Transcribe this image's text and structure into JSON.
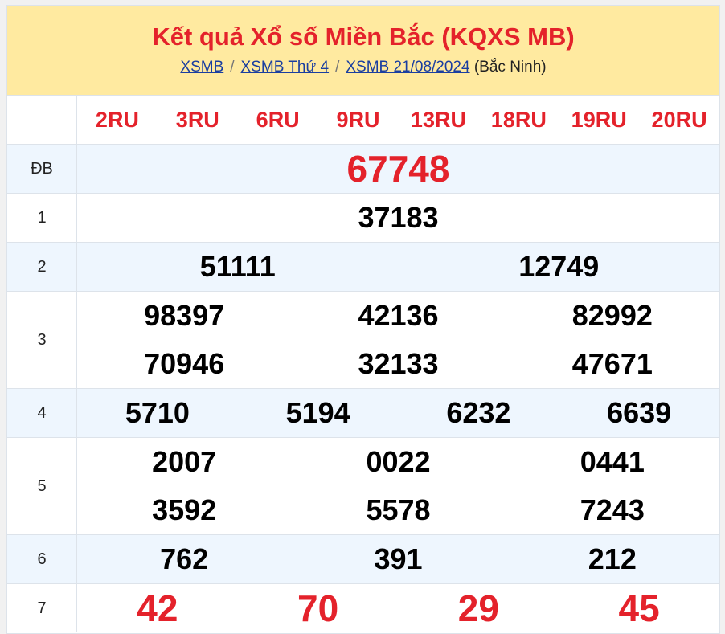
{
  "header": {
    "title": "Kết quả Xổ số Miền Bắc (KQXS MB)",
    "breadcrumb": [
      "XSMB",
      "XSMB Thứ 4",
      "XSMB 21/08/2024"
    ],
    "province": "(Bắc Ninh)"
  },
  "codes": [
    "2RU",
    "3RU",
    "6RU",
    "9RU",
    "13RU",
    "18RU",
    "19RU",
    "20RU"
  ],
  "prizes": [
    {
      "label": "ĐB",
      "cols": 1,
      "numbers": [
        "67748"
      ],
      "red": true,
      "alt": true,
      "size": 46
    },
    {
      "label": "1",
      "cols": 1,
      "numbers": [
        "37183"
      ]
    },
    {
      "label": "2",
      "cols": 2,
      "numbers": [
        "51111",
        "12749"
      ],
      "alt": true
    },
    {
      "label": "3",
      "cols": 3,
      "numbers": [
        "98397",
        "42136",
        "82992",
        "70946",
        "32133",
        "47671"
      ]
    },
    {
      "label": "4",
      "cols": 4,
      "numbers": [
        "5710",
        "5194",
        "6232",
        "6639"
      ],
      "alt": true
    },
    {
      "label": "5",
      "cols": 3,
      "numbers": [
        "2007",
        "0022",
        "0441",
        "3592",
        "5578",
        "7243"
      ]
    },
    {
      "label": "6",
      "cols": 3,
      "numbers": [
        "762",
        "391",
        "212"
      ],
      "alt": true
    },
    {
      "label": "7",
      "cols": 4,
      "numbers": [
        "42",
        "70",
        "29",
        "45"
      ],
      "red": true,
      "size": 46
    }
  ],
  "colors": {
    "accent": "#e4222b",
    "header_bg": "#ffeaa0",
    "alt_row": "#eef6fe",
    "link": "#1a3ea0"
  }
}
